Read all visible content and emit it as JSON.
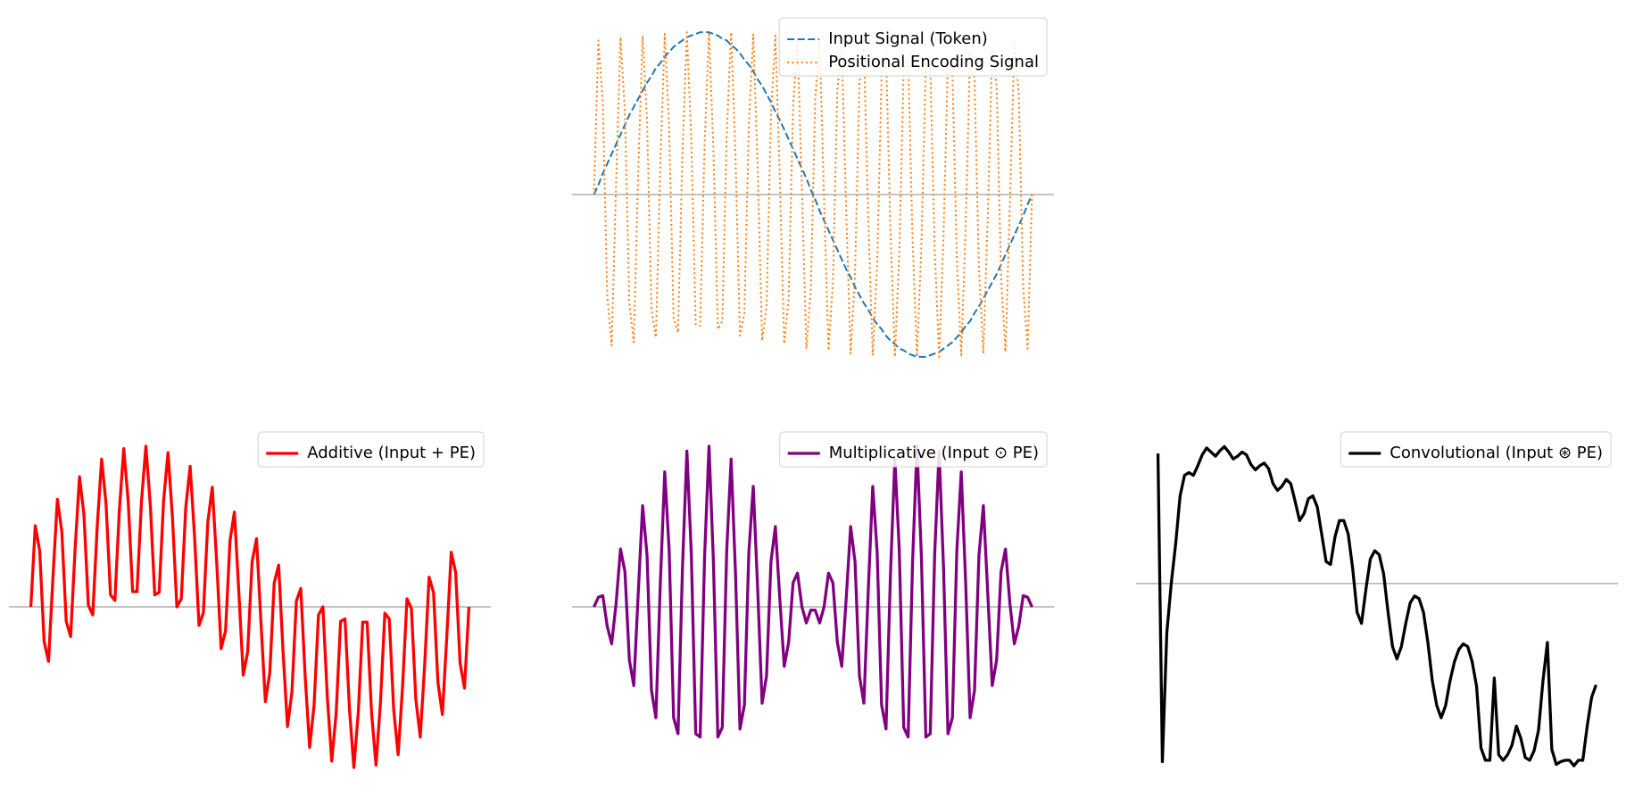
{
  "chart_data": [
    {
      "type": "line",
      "legend": "upper right",
      "baseline": 0,
      "ylim": [
        -1.1,
        1.1
      ],
      "series": [
        {
          "name": "Input Signal (Token)",
          "color": "#1f77b4",
          "style": "dashed",
          "values": [
            0,
            0.06,
            0.13,
            0.19,
            0.25,
            0.31,
            0.37,
            0.43,
            0.49,
            0.54,
            0.59,
            0.64,
            0.69,
            0.73,
            0.78,
            0.81,
            0.85,
            0.88,
            0.91,
            0.93,
            0.95,
            0.97,
            0.98,
            0.99,
            1,
            1,
            1,
            0.99,
            0.98,
            0.96,
            0.95,
            0.92,
            0.9,
            0.87,
            0.83,
            0.8,
            0.76,
            0.71,
            0.67,
            0.62,
            0.57,
            0.51,
            0.46,
            0.4,
            0.34,
            0.28,
            0.22,
            0.16,
            0.1,
            0.03,
            -0.03,
            -0.1,
            -0.16,
            -0.22,
            -0.28,
            -0.34,
            -0.4,
            -0.46,
            -0.51,
            -0.57,
            -0.62,
            -0.67,
            -0.71,
            -0.76,
            -0.8,
            -0.83,
            -0.87,
            -0.9,
            -0.92,
            -0.95,
            -0.96,
            -0.98,
            -0.99,
            -1,
            -1,
            -1,
            -0.99,
            -0.98,
            -0.97,
            -0.95,
            -0.93,
            -0.91,
            -0.88,
            -0.85,
            -0.81,
            -0.78,
            -0.73,
            -0.69,
            -0.64,
            -0.59,
            -0.54,
            -0.49,
            -0.43,
            -0.37,
            -0.31,
            -0.25,
            -0.19,
            -0.13,
            -0.06,
            0
          ]
        },
        {
          "name": "Positional Encoding Signal",
          "color": "#ff7f0e",
          "style": "dotted",
          "values": [
            0,
            0.95,
            0.57,
            -0.62,
            -0.93,
            0.06,
            0.97,
            0.51,
            -0.67,
            -0.91,
            0.13,
            0.98,
            0.46,
            -0.71,
            -0.88,
            0.19,
            0.99,
            0.4,
            -0.76,
            -0.85,
            0.25,
            1,
            0.34,
            -0.8,
            -0.81,
            0.31,
            1,
            0.28,
            -0.83,
            -0.78,
            0.37,
            1,
            0.22,
            -0.87,
            -0.73,
            0.43,
            0.99,
            0.16,
            -0.9,
            -0.69,
            0.49,
            0.98,
            0.1,
            -0.92,
            -0.64,
            0.54,
            0.96,
            0.03,
            -0.95,
            -0.59,
            0.59,
            0.95,
            -0.03,
            -0.96,
            -0.54,
            0.64,
            0.92,
            -0.1,
            -0.98,
            -0.49,
            0.69,
            0.9,
            -0.16,
            -0.99,
            -0.43,
            0.73,
            0.87,
            -0.22,
            -1,
            -0.37,
            0.78,
            0.83,
            -0.28,
            -1,
            -0.31,
            0.81,
            0.8,
            -0.34,
            -1,
            -0.25,
            0.85,
            0.76,
            -0.4,
            -0.99,
            -0.19,
            0.88,
            0.71,
            -0.46,
            -0.98,
            -0.13,
            0.91,
            0.67,
            -0.51,
            -0.97,
            -0.06,
            0.93,
            0.62,
            -0.57,
            -0.95,
            0
          ]
        }
      ]
    },
    {
      "type": "line",
      "legend": "upper right",
      "baseline": 0,
      "ylim": [
        -2.2,
        2.2
      ],
      "series": [
        {
          "name": "Additive (Input + PE)",
          "color": "#ff0000",
          "style": "solid",
          "values": [
            0,
            1.01,
            0.7,
            -0.43,
            -0.68,
            0.37,
            1.34,
            0.94,
            -0.18,
            -0.37,
            0.72,
            1.62,
            1.15,
            0.02,
            -0.1,
            1,
            1.84,
            1.28,
            0.15,
            0.08,
            1.2,
            1.97,
            1.32,
            0.19,
            0.19,
            1.31,
            2,
            1.27,
            0.15,
            0.18,
            1.32,
            1.92,
            1.12,
            0,
            0.1,
            1.23,
            1.75,
            0.87,
            -0.23,
            -0.07,
            1.06,
            1.49,
            0.56,
            -0.52,
            -0.3,
            0.82,
            1.18,
            0.19,
            -0.85,
            -0.56,
            0.56,
            0.85,
            -0.19,
            -1.18,
            -0.82,
            0.3,
            0.52,
            -0.56,
            -1.49,
            -1.06,
            0.07,
            0.23,
            -0.87,
            -1.75,
            -1.23,
            -0.1,
            0,
            -1.12,
            -1.92,
            -1.32,
            -0.18,
            -0.15,
            -1.27,
            -2,
            -1.31,
            -0.19,
            -0.19,
            -1.32,
            -1.97,
            -1.2,
            -0.08,
            -0.15,
            -1.28,
            -1.84,
            -1,
            0.1,
            -0.02,
            -1.15,
            -1.62,
            -0.72,
            0.37,
            0.18,
            -0.94,
            -1.34,
            -0.37,
            0.68,
            0.43,
            -0.7,
            -1.01,
            0
          ]
        }
      ]
    },
    {
      "type": "line",
      "legend": "upper right",
      "baseline": 0,
      "ylim": [
        -1.1,
        1.1
      ],
      "series": [
        {
          "name": "Multiplicative (Input ⊙ PE)",
          "color": "#800080",
          "style": "solid",
          "values": [
            0,
            0.06,
            0.07,
            -0.12,
            -0.23,
            0.02,
            0.36,
            0.22,
            -0.33,
            -0.49,
            0.08,
            0.63,
            0.32,
            -0.52,
            -0.69,
            0.15,
            0.84,
            0.35,
            -0.69,
            -0.79,
            0.24,
            0.97,
            0.33,
            -0.79,
            -0.81,
            0.31,
            1,
            0.28,
            -0.81,
            -0.75,
            0.35,
            0.92,
            0.2,
            -0.76,
            -0.61,
            0.34,
            0.75,
            0.11,
            -0.6,
            -0.43,
            0.28,
            0.5,
            0.05,
            -0.37,
            -0.22,
            0.15,
            0.21,
            0,
            -0.1,
            -0.02,
            -0.02,
            -0.1,
            0,
            0.21,
            0.15,
            -0.22,
            -0.37,
            0.05,
            0.5,
            0.28,
            -0.43,
            -0.6,
            0.11,
            0.75,
            0.34,
            -0.61,
            -0.76,
            0.2,
            0.92,
            0.35,
            -0.75,
            -0.81,
            0.28,
            1,
            0.31,
            -0.81,
            -0.79,
            0.33,
            0.97,
            0.24,
            -0.79,
            -0.69,
            0.35,
            0.84,
            0.15,
            -0.69,
            -0.52,
            0.32,
            0.63,
            0.08,
            -0.49,
            -0.33,
            0.22,
            0.36,
            0.02,
            -0.23,
            -0.12,
            0.07,
            0.06,
            0
          ]
        }
      ]
    },
    {
      "type": "line",
      "legend": "upper right",
      "baseline": 0,
      "ylim": [
        -1.46,
        1.12
      ],
      "series": [
        {
          "name": "Convolutional (Input ⊛ PE)",
          "color": "#000000",
          "style": "solid",
          "values": [
            0.95,
            -1.3,
            -0.36,
            0,
            0.29,
            0.64,
            0.79,
            0.81,
            0.79,
            0.86,
            0.94,
            0.99,
            0.96,
            0.93,
            0.97,
            1,
            0.96,
            0.91,
            0.93,
            0.96,
            0.94,
            0.87,
            0.83,
            0.86,
            0.88,
            0.84,
            0.73,
            0.68,
            0.71,
            0.76,
            0.73,
            0.6,
            0.46,
            0.51,
            0.62,
            0.64,
            0.56,
            0.36,
            0.16,
            0.14,
            0.34,
            0.46,
            0.46,
            0.36,
            0.11,
            -0.21,
            -0.29,
            -0.04,
            0.18,
            0.24,
            0.21,
            0.07,
            -0.21,
            -0.46,
            -0.55,
            -0.46,
            -0.29,
            -0.14,
            -0.09,
            -0.11,
            -0.21,
            -0.43,
            -0.71,
            -0.89,
            -0.98,
            -0.89,
            -0.71,
            -0.57,
            -0.48,
            -0.44,
            -0.46,
            -0.57,
            -0.75,
            -1.2,
            -1.29,
            -1.29,
            -0.69,
            -1.25,
            -1.29,
            -1.25,
            -1.18,
            -1.04,
            -1.13,
            -1.27,
            -1.29,
            -1.22,
            -1.07,
            -0.71,
            -0.43,
            -1.21,
            -1.32,
            -1.3,
            -1.29,
            -1.29,
            -1.33,
            -1.29,
            -1.29,
            -1.04,
            -0.83,
            -0.74
          ]
        }
      ]
    }
  ]
}
